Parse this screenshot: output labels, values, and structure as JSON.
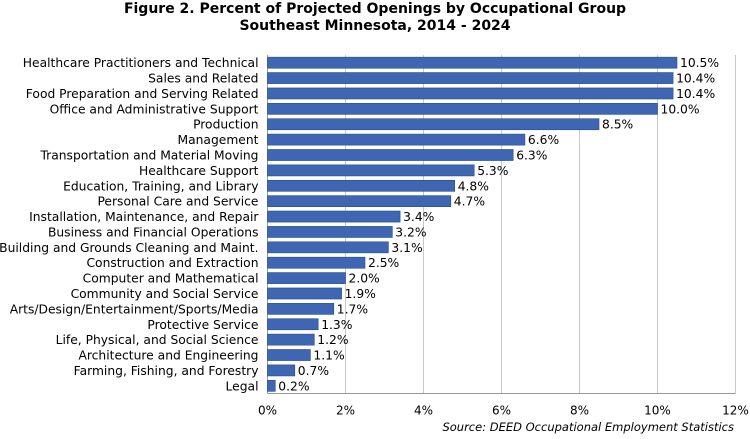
{
  "chart_data": {
    "type": "bar",
    "orientation": "horizontal",
    "title": "Figure 2. Percent of Projected Openings by Occupational Group",
    "subtitle": "Southeast Minnesota, 2014 - 2024",
    "categories": [
      "Healthcare Practitioners and Technical",
      "Sales and Related",
      "Food Preparation and Serving Related",
      "Office and Administrative Support",
      "Production",
      "Management",
      "Transportation and Material Moving",
      "Healthcare Support",
      "Education, Training, and Library",
      "Personal Care and Service",
      "Installation, Maintenance, and Repair",
      "Business and Financial Operations",
      "Building and Grounds Cleaning and Maint.",
      "Construction and Extraction",
      "Computer and Mathematical",
      "Community and Social Service",
      "Arts/Design/Entertainment/Sports/Media",
      "Protective Service",
      "Life, Physical, and Social Science",
      "Architecture and Engineering",
      "Farming, Fishing, and Forestry",
      "Legal"
    ],
    "values": [
      10.5,
      10.4,
      10.4,
      10.0,
      8.5,
      6.6,
      6.3,
      5.3,
      4.8,
      4.7,
      3.4,
      3.2,
      3.1,
      2.5,
      2.0,
      1.9,
      1.7,
      1.3,
      1.2,
      1.1,
      0.7,
      0.2
    ],
    "data_labels": [
      "10.5%",
      "10.4%",
      "10.4%",
      "10.0%",
      "8.5%",
      "6.6%",
      "6.3%",
      "5.3%",
      "4.8%",
      "4.7%",
      "3.4%",
      "3.2%",
      "3.1%",
      "2.5%",
      "2.0%",
      "1.9%",
      "1.7%",
      "1.3%",
      "1.2%",
      "1.1%",
      "0.7%",
      "0.2%"
    ],
    "xlim": [
      0,
      12
    ],
    "xticks": [
      "0%",
      "2%",
      "4%",
      "6%",
      "8%",
      "10%",
      "12%"
    ],
    "xlabel": "",
    "ylabel": "",
    "grid": "vertical",
    "legend": "none",
    "bar_color": "#3f66b2",
    "source": "Source: DEED Occupational Employment Statistics"
  }
}
